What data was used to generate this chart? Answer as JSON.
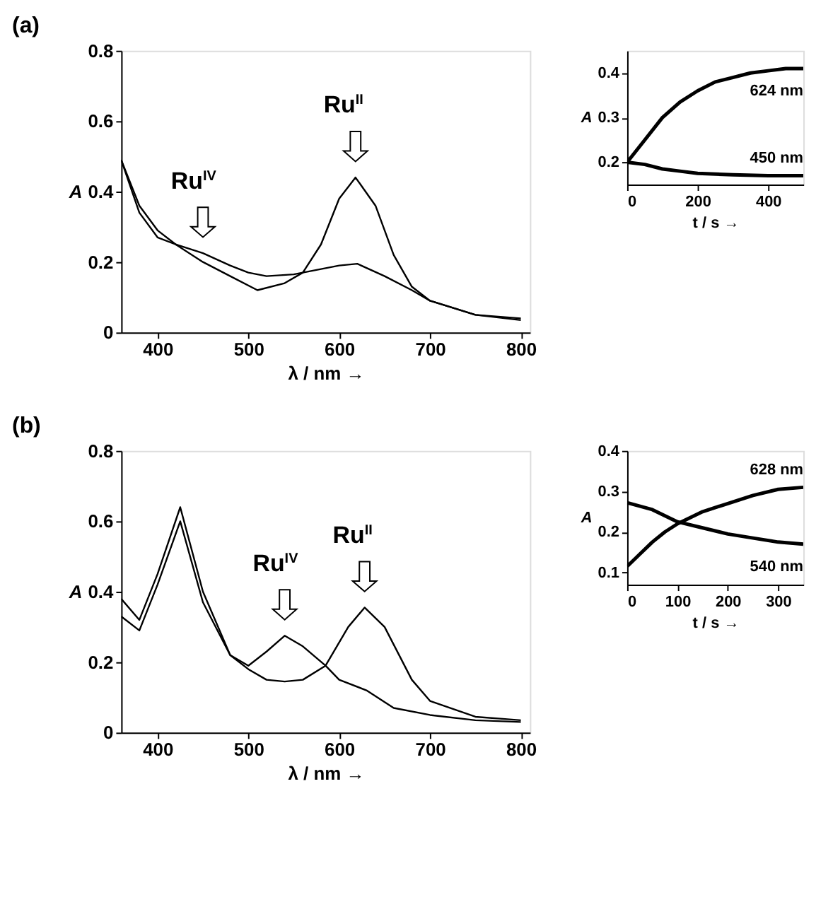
{
  "chart_data": [
    {
      "type": "line",
      "title": "(a)",
      "xlabel": "λ / nm →",
      "ylabel": "A",
      "xlim": [
        360,
        810
      ],
      "xticks": [
        400,
        500,
        600,
        700,
        800
      ],
      "ylim": [
        0,
        0.8
      ],
      "yticks": [
        0,
        0.2,
        0.4,
        0.6,
        0.8
      ],
      "grid": false,
      "annotations": [
        {
          "text": "Ru$^{IV}$",
          "x": 450,
          "y": 0.225
        },
        {
          "text": "Ru$^{II}$",
          "x": 618,
          "y": 0.44
        }
      ],
      "series": [
        {
          "color": "#000000",
          "x": [
            360,
            380,
            400,
            420,
            450,
            480,
            500,
            520,
            550,
            580,
            600,
            620,
            650,
            680,
            700,
            750,
            800
          ],
          "values": [
            0.49,
            0.36,
            0.29,
            0.25,
            0.225,
            0.19,
            0.17,
            0.16,
            0.165,
            0.18,
            0.19,
            0.195,
            0.16,
            0.12,
            0.09,
            0.05,
            0.04
          ]
        },
        {
          "color": "#000000",
          "x": [
            360,
            380,
            400,
            420,
            450,
            480,
            510,
            540,
            560,
            580,
            600,
            618,
            640,
            660,
            680,
            700,
            750,
            800
          ],
          "values": [
            0.49,
            0.34,
            0.27,
            0.25,
            0.2,
            0.16,
            0.12,
            0.14,
            0.17,
            0.25,
            0.38,
            0.44,
            0.36,
            0.22,
            0.13,
            0.09,
            0.05,
            0.035
          ]
        }
      ]
    },
    {
      "type": "line",
      "xlabel": "t / s →",
      "ylabel": "A",
      "xlim": [
        0,
        500
      ],
      "xticks": [
        0,
        200,
        400
      ],
      "ylim": [
        0.15,
        0.45
      ],
      "yticks": [
        0.2,
        0.3,
        0.4
      ],
      "grid": false,
      "series": [
        {
          "name": "624 nm",
          "color": "#000000",
          "x": [
            0,
            50,
            100,
            150,
            200,
            250,
            300,
            350,
            400,
            450,
            500
          ],
          "values": [
            0.2,
            0.25,
            0.3,
            0.335,
            0.36,
            0.38,
            0.39,
            0.4,
            0.405,
            0.41,
            0.41
          ]
        },
        {
          "name": "450 nm",
          "color": "#000000",
          "x": [
            0,
            50,
            100,
            150,
            200,
            300,
            400,
            500
          ],
          "values": [
            0.2,
            0.195,
            0.185,
            0.18,
            0.175,
            0.172,
            0.17,
            0.17
          ]
        }
      ]
    },
    {
      "type": "line",
      "title": "(b)",
      "xlabel": "λ / nm →",
      "ylabel": "A",
      "xlim": [
        360,
        810
      ],
      "xticks": [
        400,
        500,
        600,
        700,
        800
      ],
      "ylim": [
        0,
        0.8
      ],
      "yticks": [
        0,
        0.2,
        0.4,
        0.6,
        0.8
      ],
      "grid": false,
      "annotations": [
        {
          "text": "Ru$^{IV}$",
          "x": 540,
          "y": 0.275
        },
        {
          "text": "Ru$^{II}$",
          "x": 628,
          "y": 0.355
        }
      ],
      "series": [
        {
          "color": "#000000",
          "x": [
            360,
            380,
            400,
            425,
            450,
            480,
            500,
            520,
            540,
            560,
            585,
            600,
            630,
            660,
            700,
            750,
            800
          ],
          "values": [
            0.33,
            0.29,
            0.42,
            0.6,
            0.37,
            0.22,
            0.19,
            0.23,
            0.275,
            0.245,
            0.19,
            0.15,
            0.12,
            0.07,
            0.05,
            0.035,
            0.03
          ]
        },
        {
          "color": "#000000",
          "x": [
            360,
            380,
            400,
            425,
            450,
            480,
            500,
            520,
            540,
            560,
            585,
            610,
            628,
            650,
            680,
            700,
            750,
            800
          ],
          "values": [
            0.38,
            0.32,
            0.45,
            0.64,
            0.4,
            0.22,
            0.18,
            0.15,
            0.145,
            0.15,
            0.19,
            0.3,
            0.355,
            0.3,
            0.15,
            0.09,
            0.045,
            0.035
          ]
        }
      ]
    },
    {
      "type": "line",
      "xlabel": "t / s →",
      "ylabel": "A",
      "xlim": [
        0,
        350
      ],
      "xticks": [
        0,
        100,
        200,
        300
      ],
      "ylim": [
        0.07,
        0.4
      ],
      "yticks": [
        0.1,
        0.2,
        0.3,
        0.4
      ],
      "grid": false,
      "series": [
        {
          "name": "628 nm",
          "color": "#000000",
          "x": [
            0,
            25,
            50,
            75,
            100,
            150,
            200,
            250,
            300,
            350
          ],
          "values": [
            0.115,
            0.145,
            0.175,
            0.2,
            0.22,
            0.25,
            0.27,
            0.29,
            0.305,
            0.31
          ]
        },
        {
          "name": "540 nm",
          "color": "#000000",
          "x": [
            0,
            50,
            100,
            150,
            200,
            250,
            300,
            350
          ],
          "values": [
            0.272,
            0.255,
            0.225,
            0.21,
            0.195,
            0.185,
            0.175,
            0.17
          ]
        }
      ]
    }
  ]
}
